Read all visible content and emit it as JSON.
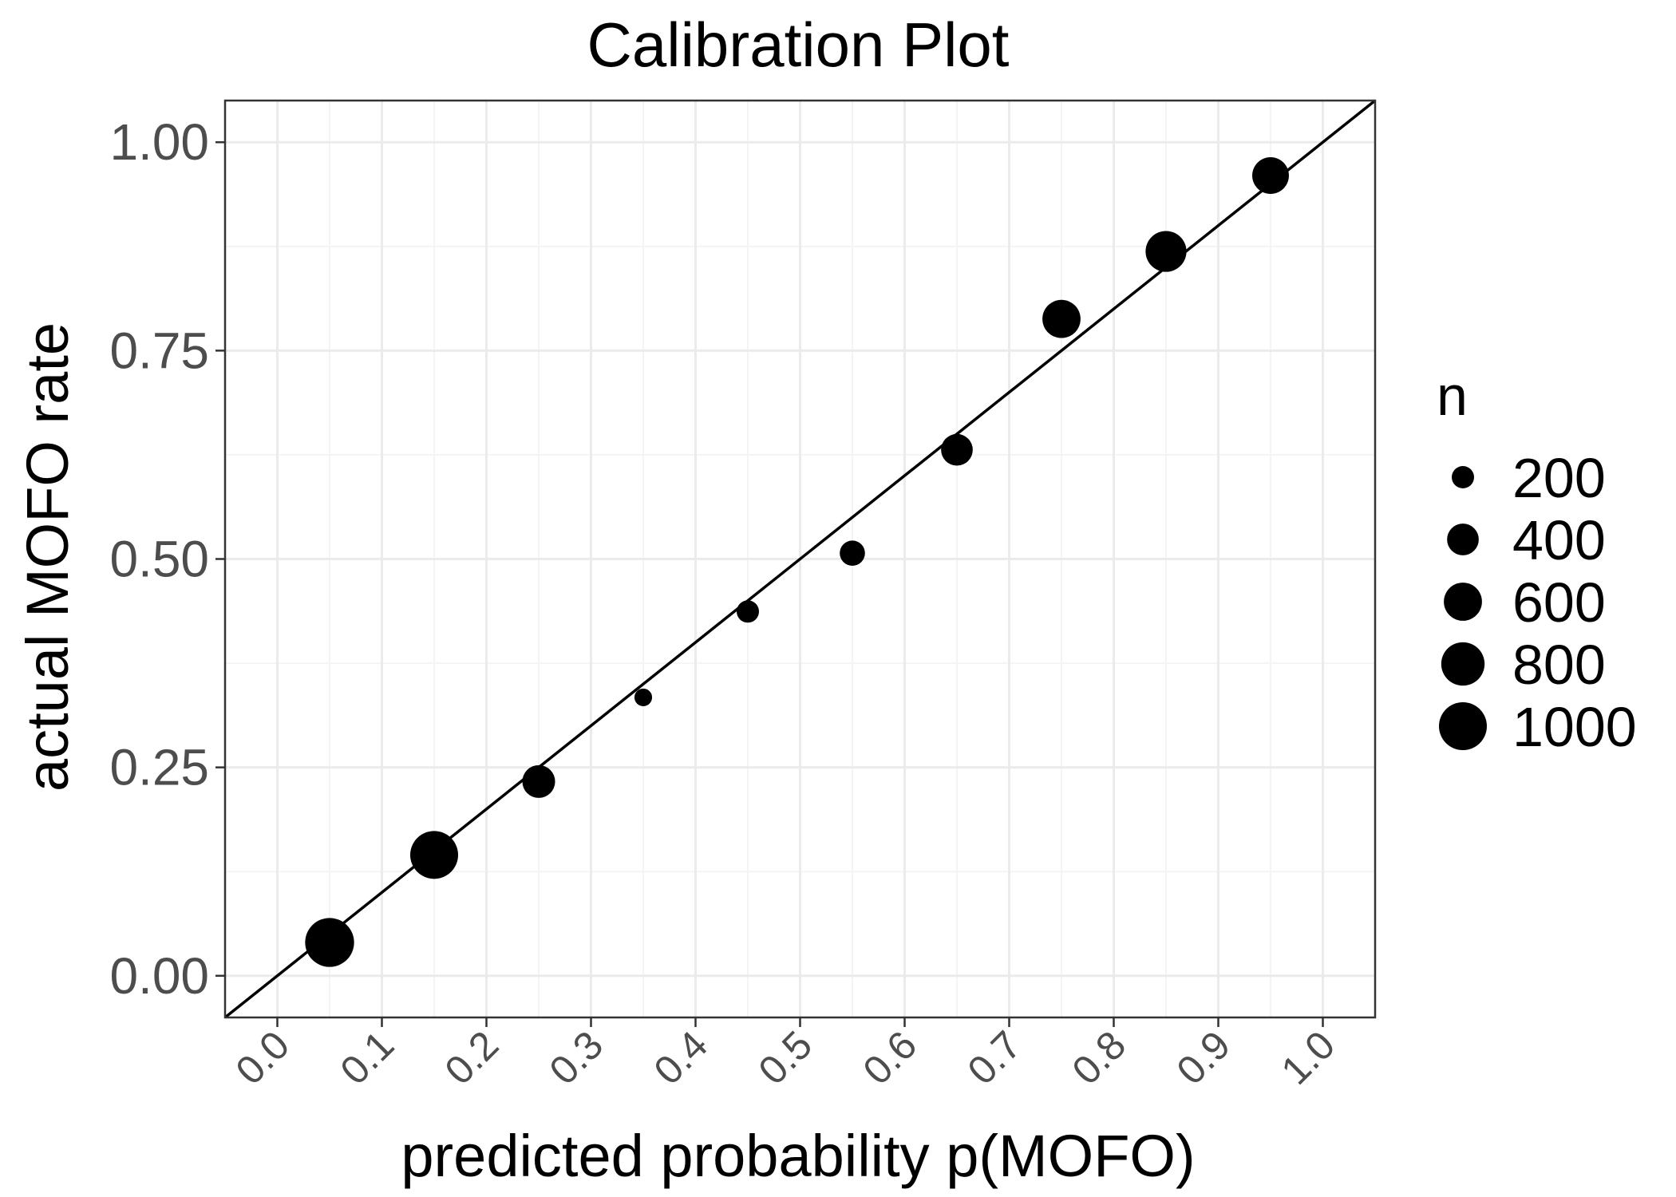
{
  "chart_data": {
    "type": "scatter",
    "title": "Calibration Plot",
    "xlabel": "predicted probability p(MOFO)",
    "ylabel": "actual MOFO rate",
    "xlim": [
      -0.05,
      1.05
    ],
    "ylim": [
      -0.05,
      1.05
    ],
    "x_ticks": [
      "0.0",
      "0.1",
      "0.2",
      "0.3",
      "0.4",
      "0.5",
      "0.6",
      "0.7",
      "0.8",
      "0.9",
      "1.0"
    ],
    "y_ticks": [
      "0.00",
      "0.25",
      "0.50",
      "0.75",
      "1.00"
    ],
    "grid": true,
    "reference_line": {
      "slope": 1,
      "intercept": 0
    },
    "size_legend": {
      "title": "n",
      "position": "right",
      "values": [
        200,
        400,
        600,
        800,
        1000
      ],
      "labels": [
        "200",
        "400",
        "600",
        "800",
        "1000"
      ]
    },
    "points": [
      {
        "x": 0.05,
        "y": 0.04,
        "n": 1050
      },
      {
        "x": 0.15,
        "y": 0.145,
        "n": 1000
      },
      {
        "x": 0.25,
        "y": 0.233,
        "n": 430
      },
      {
        "x": 0.35,
        "y": 0.334,
        "n": 140
      },
      {
        "x": 0.45,
        "y": 0.437,
        "n": 200
      },
      {
        "x": 0.55,
        "y": 0.507,
        "n": 250
      },
      {
        "x": 0.65,
        "y": 0.631,
        "n": 400
      },
      {
        "x": 0.75,
        "y": 0.788,
        "n": 600
      },
      {
        "x": 0.85,
        "y": 0.869,
        "n": 700
      },
      {
        "x": 0.95,
        "y": 0.96,
        "n": 550
      }
    ],
    "colors": {
      "point": "#000000",
      "panel_border": "#333333",
      "grid_major": "#ebebeb",
      "grid_minor": "#f4f4f4",
      "tick_text": "#4d4d4d"
    }
  }
}
